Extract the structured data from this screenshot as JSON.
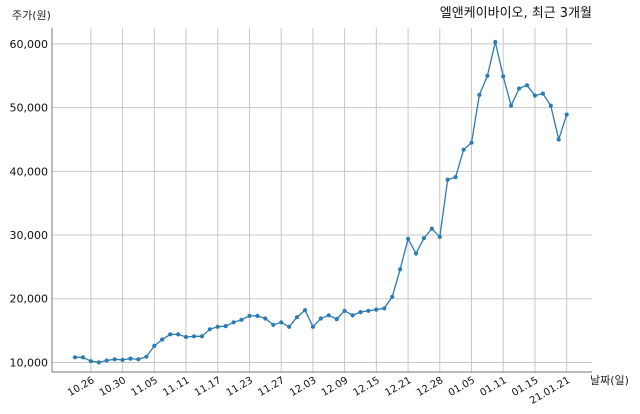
{
  "chart_data": {
    "type": "line",
    "title": "엘앤케이바이오, 최근 3개월",
    "ylabel": "주가(원)",
    "xlabel": "날짜(일)",
    "ylim": [
      8500,
      62500
    ],
    "y_ticks": [
      10000,
      20000,
      30000,
      40000,
      50000,
      60000
    ],
    "y_tick_labels": [
      "10,000",
      "20,000",
      "30,000",
      "40,000",
      "50,000",
      "60,000"
    ],
    "x_tick_labels": [
      "10.26",
      "10.30",
      "11.05",
      "11.11",
      "11.17",
      "11.23",
      "11.27",
      "12.03",
      "12.09",
      "12.15",
      "12.21",
      "12.28",
      "01.05",
      "01.11",
      "01.15",
      "21.01.21"
    ],
    "x_tick_indices": [
      2,
      6,
      10,
      14,
      18,
      22,
      26,
      30,
      34,
      38,
      42,
      46,
      50,
      54,
      58,
      62
    ],
    "grid": true,
    "color": "#2b7bb5",
    "series": [
      {
        "values": [
          10800,
          10800,
          10200,
          10000,
          10300,
          10500,
          10400,
          10600,
          10500,
          10900,
          12600,
          13600,
          14400,
          14400,
          14000,
          14100,
          14100,
          15200,
          15600,
          15700,
          16300,
          16700,
          17300,
          17300,
          16900,
          15900,
          16300,
          15600,
          17100,
          18200,
          15600,
          16900,
          17400,
          16800,
          18100,
          17400,
          17900,
          18100,
          18300,
          18500,
          20300,
          24600,
          29400,
          27100,
          29500,
          31000,
          29700,
          38700,
          39100,
          43400,
          44500,
          52000,
          55000,
          60300,
          54900,
          50300,
          53000,
          53500,
          51900,
          52200,
          50300,
          45000,
          48900
        ]
      }
    ]
  }
}
